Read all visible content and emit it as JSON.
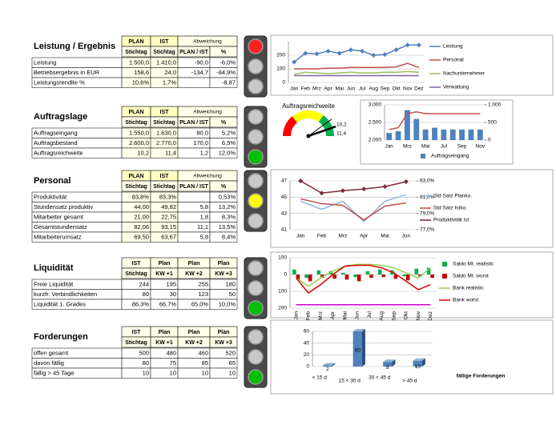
{
  "sections": [
    {
      "title": "Leistung / Ergebnis",
      "light": "red",
      "header": [
        [
          "PLAN",
          "IST",
          "Abweichung"
        ],
        [
          "Stichtag",
          "Stichtag",
          "PLAN / IST",
          "%"
        ]
      ],
      "rows": [
        [
          "Leistung",
          "1.500,0",
          "1.410,0",
          "-90,0",
          "-6,0%"
        ],
        [
          "Betriebsergebnis in EUR",
          "158,6",
          "24,0",
          "-134,7",
          "-84,9%"
        ],
        [
          "Leistungsrendite %",
          "10,6%",
          "1,7%",
          null,
          "-8,87"
        ]
      ]
    },
    {
      "title": "Auftragslage",
      "light": "green",
      "header": [
        [
          "PLAN",
          "IST",
          "Abweichung"
        ],
        [
          "Stichtag",
          "Stichtag",
          "PLAN / IST",
          "%"
        ]
      ],
      "rows": [
        [
          "Auftragseingang",
          "1.550,0",
          "1.630,0",
          "80,0",
          "5,2%"
        ],
        [
          "Auftragsbestand",
          "2.600,0",
          "2.770,0",
          "170,0",
          "6,5%"
        ],
        [
          "Auftragsreichweite",
          "10,2",
          "11,4",
          "1,2",
          "12,0%"
        ]
      ]
    },
    {
      "title": "Personal",
      "light": "yellow",
      "header": [
        [
          "PLAN",
          "IST",
          "Abweichung"
        ],
        [
          "Stichtag",
          "Stichtag",
          "PLAN / IST",
          "%"
        ]
      ],
      "rows": [
        [
          "Produktivität",
          "83,8%",
          "83,3%",
          null,
          "0,53%"
        ],
        [
          "Stundensatz produktiv",
          "44,00",
          "49,82",
          "5,8",
          "13,2%"
        ],
        [
          "Mitarbeiter gesamt",
          "21,00",
          "22,75",
          "1,8",
          "8,3%"
        ],
        [
          "Gesamtstundensatz",
          "82,06",
          "93,15",
          "11,1",
          "13,5%"
        ],
        [
          "Mitarbeiterumsatz",
          "69,50",
          "63,67",
          "5,8",
          "8,4%"
        ]
      ]
    },
    {
      "title": "Liquidität",
      "light": "green",
      "header": [
        [
          "IST",
          "Plan",
          "Plan",
          "Plan"
        ],
        [
          "Stichtag",
          "KW +1",
          "KW +2",
          "KW +3"
        ]
      ],
      "rows": [
        [
          "Freie Liquidität",
          "244",
          "195",
          "255",
          "180"
        ],
        [
          "kurzfr. Verbindlichkeiten",
          "80",
          "30",
          "123",
          "50"
        ],
        [
          "Liquidität 1. Grades",
          "86,3%",
          "66,7%",
          "65,0%",
          "10,0%"
        ]
      ]
    },
    {
      "title": "Forderungen",
      "light": "green",
      "header": [
        [
          "IST",
          "Plan",
          "Plan",
          "Plan"
        ],
        [
          "Stichtag",
          "KW +1",
          "KW +2",
          "KW +3"
        ]
      ],
      "rows": [
        [
          "offen gesamt",
          "500",
          "480",
          "460",
          "520"
        ],
        [
          "davon fällig",
          "80",
          "75",
          "85",
          "65"
        ],
        [
          "fällig > 45 Tage",
          "10",
          "10",
          "10",
          "10"
        ]
      ]
    }
  ],
  "chart_data": [
    {
      "type": "line",
      "categories": [
        "Jan",
        "Feb",
        "Mrz",
        "Apr",
        "Mai",
        "Jun",
        "Jul",
        "Aug",
        "Sep",
        "Okt",
        "Nov",
        "Dez"
      ],
      "ylim": [
        0,
        300
      ],
      "yticks": [
        0,
        100,
        200
      ],
      "grid": true,
      "series": [
        {
          "name": "Leistung",
          "color": "#4f81bd",
          "marker": true,
          "values": [
            150,
            215,
            210,
            230,
            215,
            240,
            230,
            200,
            205,
            240,
            275,
            275
          ]
        },
        {
          "name": "Personal",
          "color": "#c0504d",
          "values": [
            100,
            100,
            100,
            105,
            105,
            110,
            110,
            110,
            110,
            115,
            140,
            110
          ]
        },
        {
          "name": "Nachunternehmer",
          "color": "#9bbb59",
          "values": [
            60,
            75,
            70,
            65,
            70,
            75,
            70,
            70,
            75,
            75,
            80,
            75
          ]
        },
        {
          "name": "Verwaltung",
          "color": "#8064a2",
          "values": [
            50,
            50,
            50,
            50,
            50,
            50,
            50,
            50,
            50,
            50,
            50,
            50
          ]
        }
      ]
    },
    {
      "type": "gauge",
      "title": "Auftragsreichweite",
      "values": [
        10.2,
        11.4
      ],
      "value_labels": [
        "10,2",
        "11,4"
      ]
    },
    {
      "type": "combo",
      "categories": [
        "Jan",
        null,
        "Mrz",
        null,
        "Mai",
        null,
        "Jul",
        null,
        "Sep",
        null,
        "Nov"
      ],
      "ylim": [
        2000,
        3000
      ],
      "yticks": [
        {
          "value": 2000,
          "label": "2.000"
        },
        {
          "value": 2500,
          "label": "2.500"
        },
        {
          "value": 3000,
          "label": "3.000"
        }
      ],
      "y2lim": [
        0,
        1000
      ],
      "y2ticks": [
        0,
        500,
        {
          "value": 1000,
          "label": "1.000"
        }
      ],
      "grid": true,
      "series": [
        {
          "name": "Auftragseingang",
          "color": "#4f81bd",
          "kind": "bar",
          "axis": "y2",
          "values": [
            200,
            250,
            850,
            600,
            300,
            350,
            300,
            300,
            300,
            300,
            300
          ]
        },
        {
          "color": "#c0504d",
          "kind": "line",
          "values": [
            2300,
            2350,
            2750,
            2800,
            2750,
            2750,
            2750,
            2750,
            2750,
            2750,
            2750
          ]
        }
      ]
    },
    {
      "type": "line",
      "categories": [
        "Jan",
        "Feb",
        "Mrz",
        "Apr",
        "Mai",
        "Jun"
      ],
      "ylim": [
        41,
        47
      ],
      "yticks": [
        41,
        43,
        45,
        47
      ],
      "y2lim": [
        77,
        83
      ],
      "y2ticks": [
        {
          "value": 77,
          "label": "77,0%"
        },
        {
          "value": 79,
          "label": "79,0%"
        },
        {
          "value": 81,
          "label": "81,0%"
        },
        {
          "value": 83,
          "label": "83,0%"
        }
      ],
      "grid": true,
      "series": [
        {
          "name": "Std Satz Planko.",
          "color": "#8db4e2",
          "values": [
            44.5,
            43.5,
            44.5,
            42,
            44.5,
            45.3
          ]
        },
        {
          "name": "Std Satz Istko.",
          "color": "#c0504d",
          "values": [
            44.8,
            44.2,
            44,
            42.2,
            43.9,
            44.3
          ]
        },
        {
          "name": "Produktivität Ist",
          "color": "#7b2c3a",
          "marker": true,
          "axis": "y2",
          "values": [
            83,
            81.5,
            81.8,
            82,
            82.3,
            82.9
          ]
        }
      ]
    },
    {
      "type": "combo",
      "categories": [
        "Jan",
        "Feb",
        "Mrz",
        "Apr",
        "Mai",
        "Jun",
        "Jul",
        "Aug",
        "Sep",
        "Okt",
        "Nov",
        "Dez"
      ],
      "ylim": [
        -200,
        100
      ],
      "yticks": [
        100,
        0,
        {
          "value": -100,
          "label": "100"
        },
        {
          "value": -200,
          "label": "200"
        }
      ],
      "grid": true,
      "series": [
        {
          "name": "Saldo Mt. realistic",
          "color": "#00b050",
          "kind": "bar",
          "values": [
            30,
            -20,
            25,
            20,
            10,
            -15,
            20,
            30,
            25,
            -10,
            35,
            40
          ]
        },
        {
          "name": "Saldo Mt. worst",
          "color": "#c00000",
          "kind": "bar",
          "values": [
            -30,
            -40,
            -20,
            -25,
            -30,
            -40,
            -20,
            -15,
            -25,
            -35,
            -10,
            -20
          ]
        },
        {
          "name": "Bank realistic",
          "color": "#92d050",
          "kind": "line",
          "values": [
            -20,
            -70,
            -20,
            20,
            50,
            60,
            60,
            55,
            40,
            10,
            -20,
            40
          ]
        },
        {
          "name": "Bank worst",
          "color": "#e00000",
          "kind": "line",
          "values": [
            -20,
            -110,
            -60,
            0,
            50,
            55,
            55,
            40,
            10,
            -40,
            -90,
            -60
          ]
        },
        {
          "color": "#cc00cc",
          "kind": "line",
          "values": [
            -180,
            -180,
            -180,
            -180,
            -180,
            -180,
            -180,
            -180,
            -180,
            -180,
            -180,
            -180
          ]
        }
      ]
    },
    {
      "type": "bar",
      "title": "fällige Forderungen",
      "categories": [
        "< 15 d",
        "15 < 30 d",
        "30 < 45 d",
        "> 45 d"
      ],
      "values": [
        2,
        60,
        8,
        10
      ],
      "color": "#4f81bd",
      "ylim": [
        0,
        60
      ],
      "yticks": [
        0,
        20,
        40,
        60
      ],
      "grid": true
    }
  ]
}
